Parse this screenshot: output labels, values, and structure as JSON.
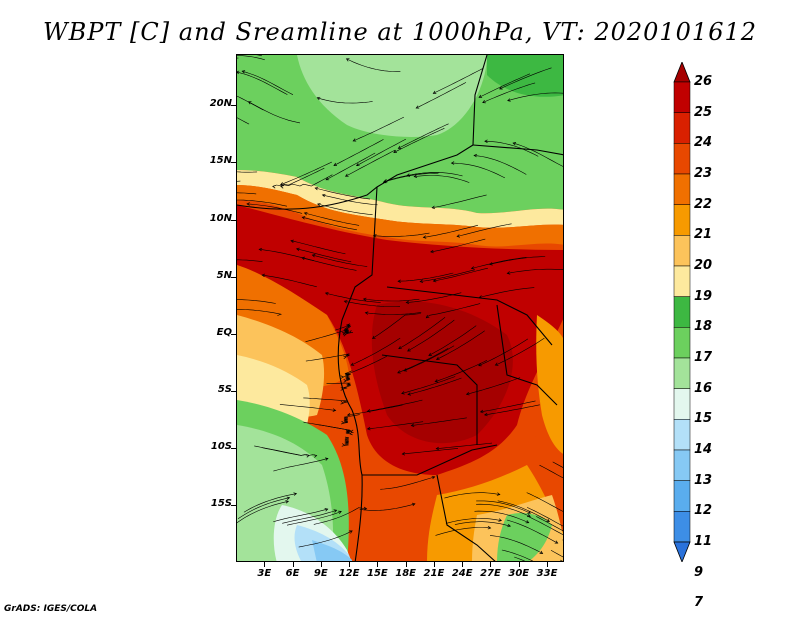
{
  "title": "WBPT [C] and Sreamline at 1000hPa, VT: 2020101612",
  "credit": "GrADS: IGES/COLA",
  "map": {
    "lat_axis": [
      {
        "label": "20N",
        "lat": 20
      },
      {
        "label": "15N",
        "lat": 15
      },
      {
        "label": "10N",
        "lat": 10
      },
      {
        "label": "5N",
        "lat": 5
      },
      {
        "label": "EQ",
        "lat": 0
      },
      {
        "label": "5S",
        "lat": -5
      },
      {
        "label": "10S",
        "lat": -10
      },
      {
        "label": "15S",
        "lat": -15
      }
    ],
    "lon_axis": [
      {
        "label": "3E",
        "lon": 3
      },
      {
        "label": "6E",
        "lon": 6
      },
      {
        "label": "9E",
        "lon": 9
      },
      {
        "label": "12E",
        "lon": 12
      },
      {
        "label": "15E",
        "lon": 15
      },
      {
        "label": "18E",
        "lon": 18
      },
      {
        "label": "21E",
        "lon": 21
      },
      {
        "label": "24E",
        "lon": 24
      },
      {
        "label": "27E",
        "lon": 27
      },
      {
        "label": "30E",
        "lon": 30
      },
      {
        "label": "33E",
        "lon": 33
      }
    ],
    "lat_range": [
      -20,
      24.5
    ],
    "lon_range": [
      0,
      34.8
    ]
  },
  "colorbar": {
    "labels": [
      "26",
      "25",
      "24",
      "23",
      "22",
      "21",
      "20",
      "19",
      "18",
      "17",
      "16",
      "15",
      "14",
      "13",
      "12",
      "11",
      "9",
      "7"
    ],
    "colors": [
      "#a50000",
      "#c00000",
      "#d92000",
      "#e84800",
      "#f07000",
      "#f79a00",
      "#fcc35b",
      "#fde99e",
      "#3db842",
      "#6cd05e",
      "#a3e39a",
      "#e3f7ee",
      "#b3e0f8",
      "#86c9f4",
      "#5aadee",
      "#3d8ee6",
      "#2a72db"
    ]
  }
}
